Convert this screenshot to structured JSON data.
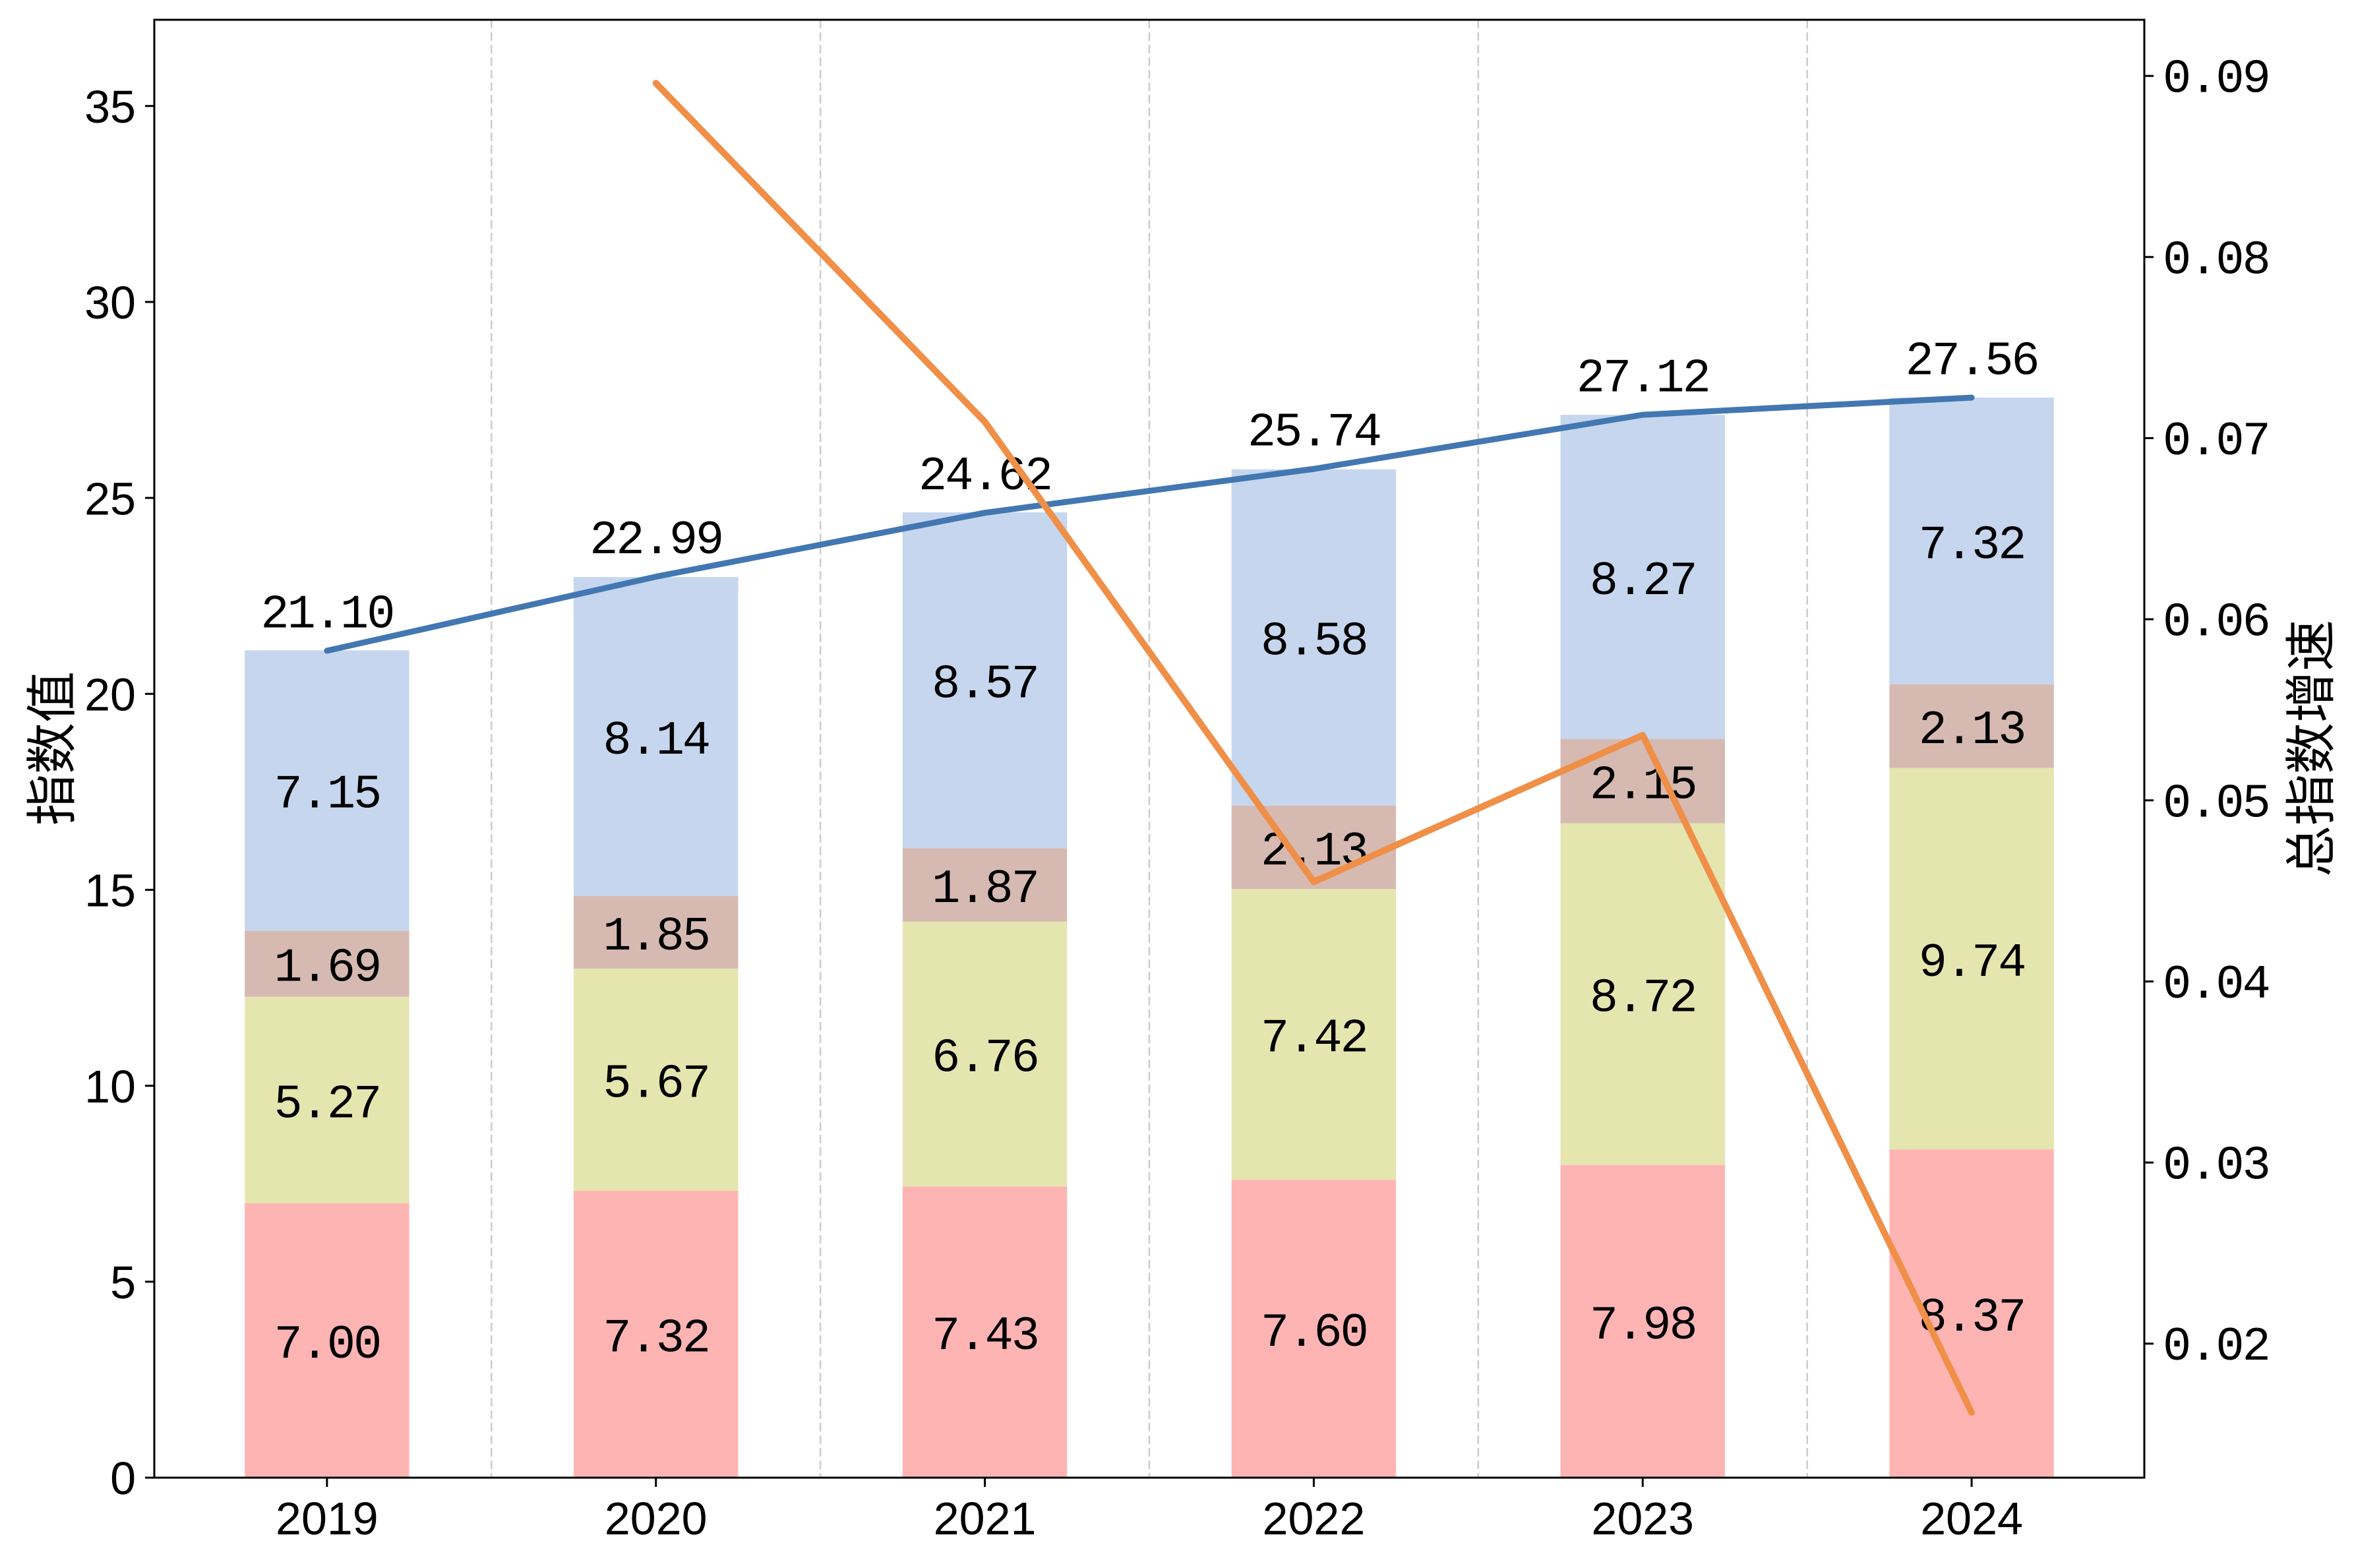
{
  "chart_data": {
    "type": "bar",
    "stacked": true,
    "categories": [
      "2019",
      "2020",
      "2021",
      "2022",
      "2023",
      "2024"
    ],
    "series": [
      {
        "color": "#ffb4b4",
        "values": [
          7.0,
          7.32,
          7.43,
          7.6,
          7.98,
          8.37
        ],
        "labels": [
          "7.00",
          "7.32",
          "7.43",
          "7.60",
          "7.98",
          "8.37"
        ]
      },
      {
        "color": "#e5e5af",
        "values": [
          5.27,
          5.67,
          6.76,
          7.42,
          8.72,
          9.74
        ],
        "labels": [
          "5.27",
          "5.67",
          "6.76",
          "7.42",
          "8.72",
          "9.74"
        ]
      },
      {
        "color": "#d6bab2",
        "values": [
          1.69,
          1.85,
          1.87,
          2.13,
          2.15,
          2.13
        ],
        "labels": [
          "1.69",
          "1.85",
          "1.87",
          "2.13",
          "2.15",
          "2.13"
        ]
      },
      {
        "color": "#c6d6ee",
        "values": [
          7.15,
          8.14,
          8.57,
          8.58,
          8.27,
          7.32
        ],
        "labels": [
          "7.15",
          "8.14",
          "8.57",
          "8.58",
          "8.27",
          "7.32"
        ]
      }
    ],
    "totals": {
      "type": "line",
      "color": "#4277b2",
      "values": [
        21.1,
        22.99,
        24.62,
        25.74,
        27.12,
        27.56
      ],
      "labels": [
        "21.10",
        "22.99",
        "24.62",
        "25.74",
        "27.12",
        "27.56"
      ]
    },
    "right_axis_series": {
      "type": "line",
      "color": "#ef8f48",
      "values": [
        null,
        0.0896,
        0.0709,
        0.0455,
        0.0536,
        0.0162
      ]
    },
    "ylabel": "指数值",
    "ylabel_right": "总指数增速",
    "ylim": [
      0,
      37.2
    ],
    "ylim_right": [
      0.0126,
      0.0931
    ],
    "yticks": [
      "0",
      "5",
      "10",
      "15",
      "20",
      "25",
      "30",
      "35"
    ],
    "yticks_right": [
      "0.02",
      "0.03",
      "0.04",
      "0.05",
      "0.06",
      "0.07",
      "0.08",
      "0.09"
    ],
    "grid_x": true
  }
}
